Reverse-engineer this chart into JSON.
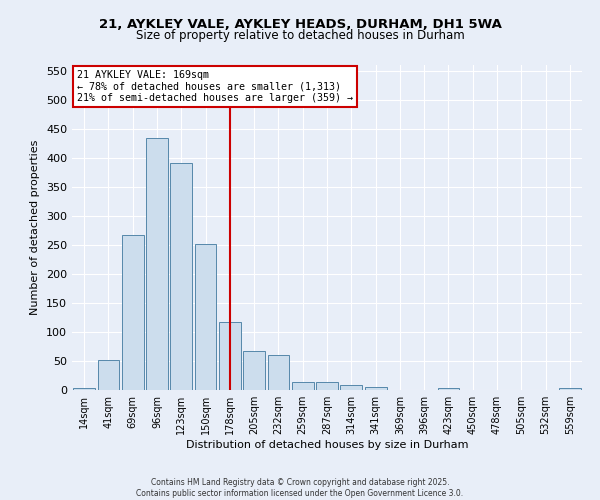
{
  "title_line1": "21, AYKLEY VALE, AYKLEY HEADS, DURHAM, DH1 5WA",
  "title_line2": "Size of property relative to detached houses in Durham",
  "xlabel": "Distribution of detached houses by size in Durham",
  "ylabel": "Number of detached properties",
  "categories": [
    "14sqm",
    "41sqm",
    "69sqm",
    "96sqm",
    "123sqm",
    "150sqm",
    "178sqm",
    "205sqm",
    "232sqm",
    "259sqm",
    "287sqm",
    "314sqm",
    "341sqm",
    "369sqm",
    "396sqm",
    "423sqm",
    "450sqm",
    "478sqm",
    "505sqm",
    "532sqm",
    "559sqm"
  ],
  "values": [
    4,
    51,
    267,
    434,
    391,
    251,
    117,
    68,
    60,
    13,
    13,
    8,
    6,
    0,
    0,
    3,
    0,
    0,
    0,
    0,
    3
  ],
  "bar_color": "#ccdded",
  "bar_edge_color": "#5588aa",
  "vline_x_index": 6,
  "vline_color": "#cc0000",
  "annotation_title": "21 AYKLEY VALE: 169sqm",
  "annotation_line2": "← 78% of detached houses are smaller (1,313)",
  "annotation_line3": "21% of semi-detached houses are larger (359) →",
  "annotation_box_color": "#ffffff",
  "annotation_box_edge": "#cc0000",
  "ylim": [
    0,
    560
  ],
  "yticks": [
    0,
    50,
    100,
    150,
    200,
    250,
    300,
    350,
    400,
    450,
    500,
    550
  ],
  "background_color": "#e8eef8",
  "footer_line1": "Contains HM Land Registry data © Crown copyright and database right 2025.",
  "footer_line2": "Contains public sector information licensed under the Open Government Licence 3.0."
}
